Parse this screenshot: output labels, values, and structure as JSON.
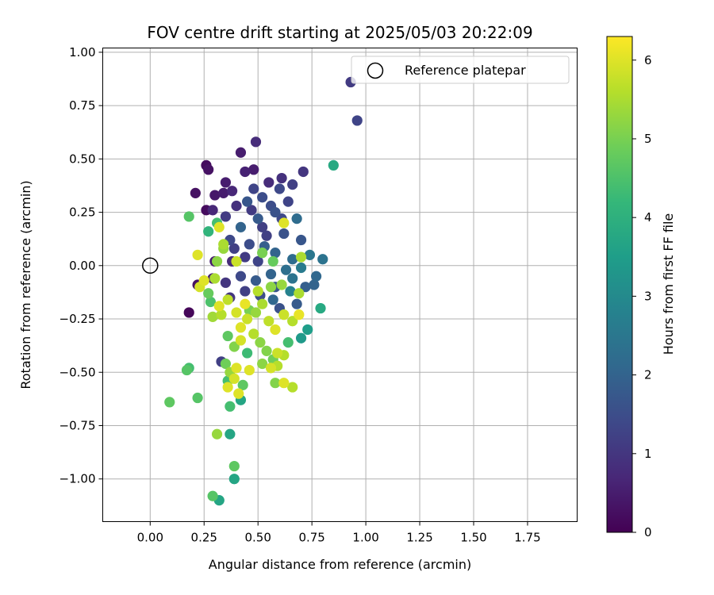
{
  "chart_data": {
    "type": "scatter",
    "title": "FOV centre drift starting at 2025/05/03 20:22:09",
    "xlabel": "Angular distance from reference (arcmin)",
    "ylabel": "Rotation from reference (arcmin)",
    "xlim": [
      -0.22,
      1.98
    ],
    "ylim": [
      -1.2,
      1.02
    ],
    "x_ticks": [
      "0.00",
      "0.25",
      "0.50",
      "0.75",
      "1.00",
      "1.25",
      "1.50",
      "1.75"
    ],
    "y_ticks": [
      "1.00",
      "0.75",
      "0.50",
      "0.25",
      "0.00",
      "−0.25",
      "−0.50",
      "−0.75",
      "−1.00"
    ],
    "grid": true,
    "legend": {
      "placement": "upper-right",
      "entries": [
        "Reference platepar"
      ]
    },
    "reference_point": {
      "name": "Reference platepar",
      "x": 0.0,
      "y": 0.0
    },
    "colorbar": {
      "label": "Hours from first FF file",
      "colormap": "viridis",
      "range": [
        0,
        6.3
      ],
      "ticks": [
        "0",
        "1",
        "2",
        "3",
        "4",
        "5",
        "6"
      ]
    },
    "colormap_stops": [
      "#440154",
      "#482878",
      "#3e4989",
      "#31688e",
      "#26828e",
      "#1f9e89",
      "#35b779",
      "#6ece58",
      "#b5de2b",
      "#fde725"
    ],
    "points": [
      [
        0.93,
        0.86,
        1.1
      ],
      [
        0.96,
        0.68,
        1.3
      ],
      [
        0.85,
        0.47,
        3.8
      ],
      [
        0.26,
        0.47,
        0.2
      ],
      [
        0.27,
        0.45,
        0.3
      ],
      [
        0.42,
        0.53,
        0.5
      ],
      [
        0.49,
        0.58,
        0.8
      ],
      [
        0.21,
        0.34,
        0.3
      ],
      [
        0.26,
        0.26,
        0.2
      ],
      [
        0.3,
        0.33,
        0.4
      ],
      [
        0.35,
        0.39,
        0.5
      ],
      [
        0.38,
        0.35,
        0.7
      ],
      [
        0.44,
        0.44,
        0.6
      ],
      [
        0.48,
        0.45,
        0.5
      ],
      [
        0.61,
        0.41,
        0.9
      ],
      [
        0.66,
        0.38,
        1.2
      ],
      [
        0.71,
        0.44,
        1.0
      ],
      [
        0.55,
        0.39,
        0.8
      ],
      [
        0.6,
        0.36,
        1.4
      ],
      [
        0.52,
        0.32,
        1.5
      ],
      [
        0.45,
        0.3,
        1.7
      ],
      [
        0.4,
        0.28,
        0.9
      ],
      [
        0.35,
        0.23,
        1.1
      ],
      [
        0.29,
        0.26,
        0.7
      ],
      [
        0.58,
        0.25,
        1.6
      ],
      [
        0.64,
        0.3,
        1.3
      ],
      [
        0.68,
        0.22,
        2.2
      ],
      [
        0.5,
        0.22,
        1.8
      ],
      [
        0.42,
        0.18,
        2.0
      ],
      [
        0.37,
        0.12,
        1.4
      ],
      [
        0.46,
        0.1,
        1.5
      ],
      [
        0.54,
        0.14,
        1.2
      ],
      [
        0.62,
        0.15,
        1.6
      ],
      [
        0.7,
        0.12,
        1.7
      ],
      [
        0.74,
        0.05,
        2.5
      ],
      [
        0.8,
        0.03,
        2.4
      ],
      [
        0.66,
        0.03,
        2.2
      ],
      [
        0.58,
        0.06,
        2.0
      ],
      [
        0.5,
        0.02,
        1.3
      ],
      [
        0.44,
        0.04,
        1.1
      ],
      [
        0.38,
        0.02,
        0.8
      ],
      [
        0.3,
        0.02,
        0.5
      ],
      [
        0.29,
        -0.06,
        0.6
      ],
      [
        0.35,
        -0.08,
        1.0
      ],
      [
        0.42,
        -0.05,
        1.4
      ],
      [
        0.49,
        -0.07,
        1.8
      ],
      [
        0.56,
        -0.04,
        2.0
      ],
      [
        0.63,
        -0.02,
        2.3
      ],
      [
        0.7,
        -0.01,
        2.6
      ],
      [
        0.77,
        -0.05,
        2.1
      ],
      [
        0.72,
        -0.1,
        1.9
      ],
      [
        0.65,
        -0.12,
        2.8
      ],
      [
        0.58,
        -0.1,
        1.7
      ],
      [
        0.51,
        -0.14,
        1.5
      ],
      [
        0.44,
        -0.12,
        1.2
      ],
      [
        0.37,
        -0.15,
        1.0
      ],
      [
        0.22,
        -0.09,
        0.3
      ],
      [
        0.18,
        -0.22,
        0.1
      ],
      [
        0.6,
        -0.2,
        1.6
      ],
      [
        0.68,
        -0.18,
        1.8
      ],
      [
        0.76,
        -0.09,
        2.0
      ],
      [
        0.79,
        -0.2,
        3.8
      ],
      [
        0.52,
        0.18,
        1.2
      ],
      [
        0.56,
        0.28,
        1.5
      ],
      [
        0.47,
        0.26,
        1.1
      ],
      [
        0.53,
        0.09,
        1.9
      ],
      [
        0.61,
        0.22,
        1.4
      ],
      [
        0.34,
        0.34,
        0.5
      ],
      [
        0.39,
        0.08,
        1.2
      ],
      [
        0.57,
        -0.16,
        2.1
      ],
      [
        0.66,
        -0.06,
        2.4
      ],
      [
        0.48,
        0.36,
        1.3
      ],
      [
        0.18,
        0.23,
        4.6
      ],
      [
        0.27,
        0.16,
        4.1
      ],
      [
        0.31,
        0.2,
        4.4
      ],
      [
        0.34,
        0.08,
        5.3
      ],
      [
        0.32,
        0.18,
        6.0
      ],
      [
        0.22,
        0.05,
        6.0
      ],
      [
        0.34,
        0.1,
        5.5
      ],
      [
        0.31,
        0.02,
        5.2
      ],
      [
        0.4,
        0.02,
        5.8
      ],
      [
        0.25,
        -0.07,
        6.0
      ],
      [
        0.23,
        -0.1,
        5.9
      ],
      [
        0.27,
        -0.13,
        4.8
      ],
      [
        0.3,
        -0.06,
        5.5
      ],
      [
        0.28,
        -0.17,
        4.5
      ],
      [
        0.32,
        -0.19,
        6.0
      ],
      [
        0.36,
        -0.16,
        5.7
      ],
      [
        0.29,
        -0.24,
        5.4
      ],
      [
        0.33,
        -0.23,
        5.6
      ],
      [
        0.4,
        -0.22,
        5.9
      ],
      [
        0.44,
        -0.18,
        6.1
      ],
      [
        0.46,
        -0.21,
        5.0
      ],
      [
        0.42,
        -0.29,
        6.0
      ],
      [
        0.45,
        -0.25,
        5.8
      ],
      [
        0.49,
        -0.22,
        5.3
      ],
      [
        0.52,
        -0.18,
        5.5
      ],
      [
        0.55,
        -0.26,
        5.7
      ],
      [
        0.58,
        -0.3,
        6.0
      ],
      [
        0.62,
        -0.23,
        5.8
      ],
      [
        0.66,
        -0.26,
        5.6
      ],
      [
        0.69,
        -0.23,
        6.1
      ],
      [
        0.73,
        -0.3,
        3.5
      ],
      [
        0.7,
        -0.34,
        3.4
      ],
      [
        0.52,
        0.06,
        5.0
      ],
      [
        0.57,
        0.02,
        4.8
      ],
      [
        0.62,
        0.2,
        6.0
      ],
      [
        0.7,
        0.04,
        5.5
      ],
      [
        0.69,
        -0.13,
        5.5
      ],
      [
        0.61,
        -0.09,
        5.3
      ],
      [
        0.56,
        -0.1,
        5.2
      ],
      [
        0.5,
        -0.12,
        5.6
      ],
      [
        0.36,
        -0.33,
        4.7
      ],
      [
        0.39,
        -0.38,
        5.1
      ],
      [
        0.42,
        -0.35,
        5.9
      ],
      [
        0.48,
        -0.32,
        5.6
      ],
      [
        0.51,
        -0.36,
        5.2
      ],
      [
        0.54,
        -0.4,
        5.1
      ],
      [
        0.57,
        -0.44,
        4.9
      ],
      [
        0.59,
        -0.41,
        5.8
      ],
      [
        0.62,
        -0.42,
        5.6
      ],
      [
        0.64,
        -0.36,
        4.4
      ],
      [
        0.45,
        -0.41,
        4.3
      ],
      [
        0.4,
        -0.48,
        6.0
      ],
      [
        0.46,
        -0.49,
        6.0
      ],
      [
        0.52,
        -0.46,
        5.2
      ],
      [
        0.56,
        -0.48,
        5.9
      ],
      [
        0.59,
        -0.47,
        5.6
      ],
      [
        0.33,
        -0.45,
        1.2
      ],
      [
        0.35,
        -0.46,
        4.9
      ],
      [
        0.37,
        -0.5,
        5.3
      ],
      [
        0.36,
        -0.54,
        4.4
      ],
      [
        0.39,
        -0.53,
        5.9
      ],
      [
        0.43,
        -0.56,
        4.7
      ],
      [
        0.36,
        -0.57,
        6.0
      ],
      [
        0.41,
        -0.6,
        6.0
      ],
      [
        0.42,
        -0.63,
        3.7
      ],
      [
        0.37,
        -0.66,
        4.4
      ],
      [
        0.58,
        -0.55,
        5.1
      ],
      [
        0.62,
        -0.55,
        6.0
      ],
      [
        0.66,
        -0.57,
        5.6
      ],
      [
        0.18,
        -0.48,
        4.4
      ],
      [
        0.17,
        -0.49,
        4.6
      ],
      [
        0.22,
        -0.62,
        4.6
      ],
      [
        0.09,
        -0.64,
        4.7
      ],
      [
        0.31,
        -0.79,
        5.3
      ],
      [
        0.37,
        -0.79,
        3.7
      ],
      [
        0.39,
        -0.94,
        4.7
      ],
      [
        0.39,
        -1.0,
        3.7
      ],
      [
        0.29,
        -1.08,
        4.6
      ],
      [
        0.32,
        -1.1,
        3.7
      ]
    ]
  }
}
